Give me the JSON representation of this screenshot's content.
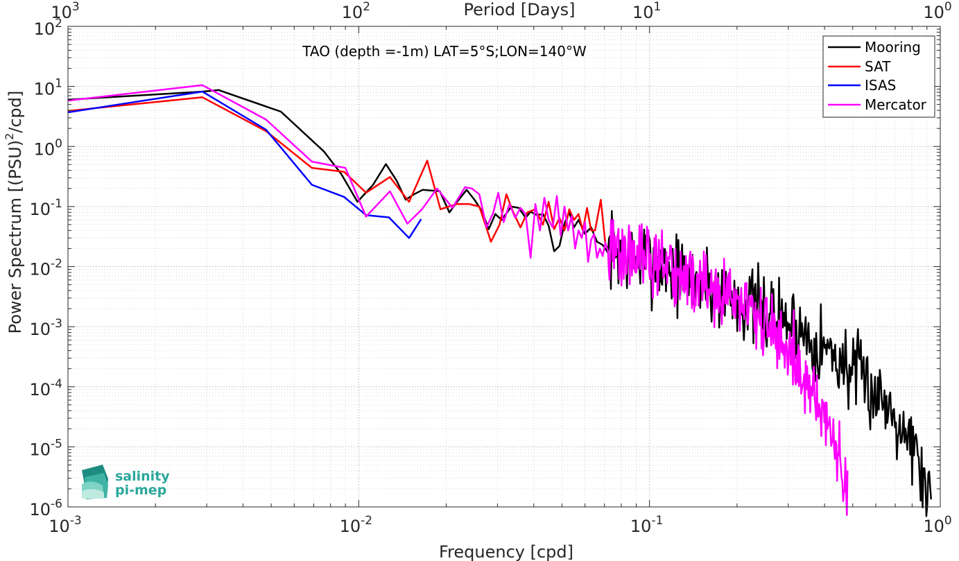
{
  "chart_data": {
    "type": "line",
    "title": "TAO (depth =-1m) LAT=5°S;LON=140°W",
    "xlabel": "Frequency [cpd]",
    "ylabel": "Power Spectrum [(PSU)^2/cpd]",
    "ylabel_parts": [
      "Power Spectrum [(PSU)",
      "2",
      "/cpd]"
    ],
    "top_xlabel": "Period [Days]",
    "x_scale": "log",
    "y_scale": "log",
    "xlim": [
      0.001,
      1
    ],
    "ylim": [
      1e-06,
      100
    ],
    "grid": true,
    "legend_position": "top-right",
    "x_ticks": [
      {
        "value": 0.001,
        "base": "10",
        "exp": "-3"
      },
      {
        "value": 0.01,
        "base": "10",
        "exp": "-2"
      },
      {
        "value": 0.1,
        "base": "10",
        "exp": "-1"
      },
      {
        "value": 1,
        "base": "10",
        "exp": "0"
      }
    ],
    "y_ticks": [
      {
        "value": 100,
        "base": "10",
        "exp": "2"
      },
      {
        "value": 10,
        "base": "10",
        "exp": "1"
      },
      {
        "value": 1,
        "base": "10",
        "exp": "0"
      },
      {
        "value": 0.1,
        "base": "10",
        "exp": "-1"
      },
      {
        "value": 0.01,
        "base": "10",
        "exp": "-2"
      },
      {
        "value": 0.001,
        "base": "10",
        "exp": "-3"
      },
      {
        "value": 0.0001,
        "base": "10",
        "exp": "-4"
      },
      {
        "value": 1e-05,
        "base": "10",
        "exp": "-5"
      },
      {
        "value": 1e-06,
        "base": "10",
        "exp": "-6"
      }
    ],
    "top_ticks": [
      {
        "value": 0.001,
        "base": "10",
        "exp": "3"
      },
      {
        "value": 0.01,
        "base": "10",
        "exp": "2"
      },
      {
        "value": 0.1,
        "base": "10",
        "exp": "1"
      },
      {
        "value": 1,
        "base": "10",
        "exp": "0"
      }
    ],
    "series": [
      {
        "name": "Mooring",
        "color": "#000000",
        "generated": true,
        "seed": 7,
        "x": [
          0.001,
          0.0029,
          0.0033,
          0.0054,
          0.0076,
          0.0087,
          0.0099,
          0.0112,
          0.0124,
          0.0135,
          0.0145,
          0.0155,
          0.0166,
          0.019,
          0.0205,
          0.0218,
          0.0235,
          0.025,
          0.0265,
          0.028,
          0.0295,
          0.031,
          0.0335,
          0.0355,
          0.0375,
          0.039,
          0.041,
          0.043,
          0.045,
          0.047,
          0.049,
          0.051,
          0.053,
          0.055,
          0.057,
          0.06,
          0.063,
          0.066,
          0.069,
          0.072
        ],
        "y": [
          6,
          8.2,
          8.7,
          3.8,
          0.82,
          0.35,
          0.12,
          0.23,
          0.51,
          0.27,
          0.13,
          0.16,
          0.19,
          0.18,
          0.08,
          0.12,
          0.19,
          0.13,
          0.085,
          0.042,
          0.075,
          0.06,
          0.1,
          0.095,
          0.065,
          0.082,
          0.072,
          0.075,
          0.048,
          0.018,
          0.022,
          0.052,
          0.08,
          0.045,
          0.06,
          0.035,
          0.045,
          0.026,
          0.023,
          0.017
        ],
        "noise_from": 0.072,
        "noise_to": 0.93,
        "noise_n": 340,
        "noise_anchors": [
          [
            0.072,
            0.02
          ],
          [
            0.1,
            0.013
          ],
          [
            0.15,
            0.0055
          ],
          [
            0.2,
            0.0028
          ],
          [
            0.3,
            0.0012
          ],
          [
            0.4,
            0.00045
          ],
          [
            0.5,
            0.00018
          ],
          [
            0.6,
            8e-05
          ],
          [
            0.7,
            4e-05
          ],
          [
            0.8,
            1.2e-05
          ],
          [
            0.93,
            1.2e-06
          ]
        ],
        "noise_amp": 0.5
      },
      {
        "name": "SAT",
        "color": "#ff0000",
        "x": [
          0.001,
          0.0029,
          0.0048,
          0.0069,
          0.0089,
          0.0106,
          0.0128,
          0.0149,
          0.0172,
          0.0191,
          0.0217,
          0.024,
          0.026,
          0.0285,
          0.0305,
          0.0322,
          0.034,
          0.036,
          0.038,
          0.0405,
          0.043,
          0.045,
          0.047,
          0.049,
          0.051,
          0.053,
          0.055,
          0.057,
          0.059,
          0.061,
          0.063,
          0.065,
          0.068,
          0.0705
        ],
        "y": [
          3.9,
          6.6,
          1.8,
          0.44,
          0.38,
          0.17,
          0.31,
          0.12,
          0.58,
          0.09,
          0.11,
          0.11,
          0.1,
          0.026,
          0.05,
          0.16,
          0.08,
          0.045,
          0.08,
          0.09,
          0.05,
          0.12,
          0.042,
          0.065,
          0.04,
          0.09,
          0.06,
          0.075,
          0.04,
          0.095,
          0.04,
          0.04,
          0.13,
          0.024
        ]
      },
      {
        "name": "ISAS",
        "color": "#0000ff",
        "x": [
          0.001,
          0.0029,
          0.0048,
          0.0069,
          0.0089,
          0.0106,
          0.0127,
          0.0149,
          0.0164
        ],
        "y": [
          3.7,
          8.2,
          1.9,
          0.23,
          0.145,
          0.072,
          0.066,
          0.03,
          0.062
        ]
      },
      {
        "name": "Mercator",
        "color": "#ff00ff",
        "generated": true,
        "seed": 42,
        "x": [
          0.001,
          0.0029,
          0.0048,
          0.0069,
          0.009,
          0.0106,
          0.0128,
          0.0147,
          0.0165,
          0.0186,
          0.021,
          0.0232,
          0.0245,
          0.026,
          0.0275,
          0.029,
          0.0302,
          0.0315,
          0.033,
          0.0345,
          0.036,
          0.0375,
          0.039,
          0.0405,
          0.042,
          0.0435,
          0.045,
          0.0465,
          0.048,
          0.0495,
          0.051,
          0.0525,
          0.054,
          0.0555,
          0.057,
          0.0585,
          0.06,
          0.0615,
          0.063,
          0.0645,
          0.066,
          0.0675,
          0.069,
          0.0705,
          0.072
        ],
        "y": [
          5.8,
          10.5,
          2.8,
          0.56,
          0.44,
          0.068,
          0.18,
          0.052,
          0.09,
          0.2,
          0.095,
          0.21,
          0.2,
          0.16,
          0.045,
          0.078,
          0.17,
          0.055,
          0.11,
          0.065,
          0.095,
          0.075,
          0.014,
          0.11,
          0.04,
          0.14,
          0.06,
          0.045,
          0.15,
          0.033,
          0.1,
          0.04,
          0.07,
          0.02,
          0.04,
          0.03,
          0.055,
          0.012,
          0.028,
          0.035,
          0.014,
          0.02,
          0.015,
          0.025,
          0.018
        ],
        "noise_from": 0.072,
        "noise_to": 0.48,
        "noise_n": 320,
        "noise_anchors": [
          [
            0.072,
            0.02
          ],
          [
            0.1,
            0.012
          ],
          [
            0.15,
            0.005
          ],
          [
            0.2,
            0.0025
          ],
          [
            0.25,
            0.0011
          ],
          [
            0.3,
            0.00038
          ],
          [
            0.35,
            0.00012
          ],
          [
            0.4,
            3e-05
          ],
          [
            0.45,
            8e-06
          ],
          [
            0.48,
            1.2e-06
          ]
        ],
        "noise_amp": 0.45
      }
    ]
  },
  "legend_items": [
    "Mooring",
    "SAT",
    "ISAS",
    "Mercator"
  ],
  "logo": {
    "line1": "salinity",
    "line2": "pi-mep"
  }
}
